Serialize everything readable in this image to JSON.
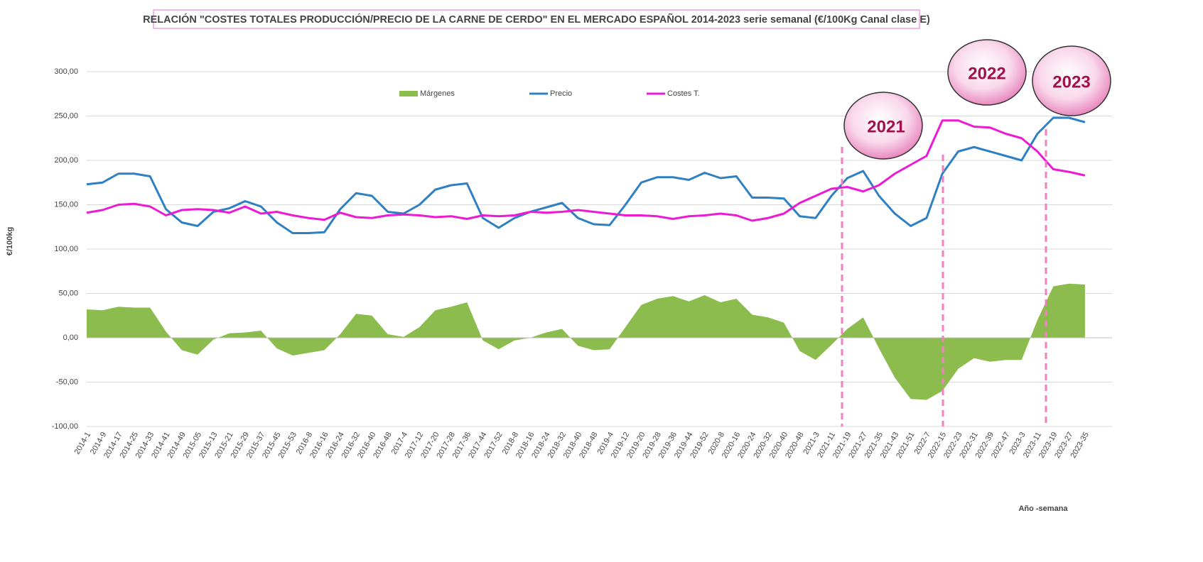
{
  "chart_data": {
    "type": "line",
    "title": "RELACIÓN \"COSTES TOTALES PRODUCCIÓN/PRECIO DE LA CARNE DE CERDO\" EN EL MERCADO ESPAÑOL 2014-2023 serie semanal (€/100Kg Canal clase E)",
    "y_label": "€/100kg",
    "x_label": "Año -semana",
    "annotations": [
      "2021",
      "2022",
      "2023"
    ],
    "categories": [
      "2014-1",
      "2014-9",
      "2014-17",
      "2014-25",
      "2014-33",
      "2014-41",
      "2014-49",
      "2015-05",
      "2015-13",
      "2015-21",
      "2015-29",
      "2015-37",
      "2015-45",
      "2015-53",
      "2016-8",
      "2016-16",
      "2016-24",
      "2016-32",
      "2016-40",
      "2016-48",
      "2017-4",
      "2017-12",
      "2017-20",
      "2017-28",
      "2017-36",
      "2017-44",
      "2017-52",
      "2018-8",
      "2018-16",
      "2018-24",
      "2018-32",
      "2018-40",
      "2018-48",
      "2019-4",
      "2019-12",
      "2019-20",
      "2019-28",
      "2019-36",
      "2019-44",
      "2019-52",
      "2020-8",
      "2020-16",
      "2020-24",
      "2020-32",
      "2020-40",
      "2020-48",
      "2021-3",
      "2021-11",
      "2021-19",
      "2021-27",
      "2021-35",
      "2021-43",
      "2021-51",
      "2022-7",
      "2022-15",
      "2022-23",
      "2022-31",
      "2022-39",
      "2022-47",
      "2023-3",
      "2023-11",
      "2023-19",
      "2023-27",
      "2023-35"
    ],
    "series": [
      {
        "name": "Márgenes",
        "color": "#8cbb4e",
        "kind": "area",
        "values": [
          32,
          31,
          35,
          34,
          34,
          7,
          -14,
          -19,
          -2,
          5,
          6,
          8,
          -12,
          -20,
          -17,
          -14,
          4,
          27,
          25,
          4,
          1,
          12,
          31,
          35,
          40,
          -3,
          -13,
          -3,
          0,
          6,
          10,
          -9,
          -14,
          -13,
          12,
          37,
          44,
          47,
          41,
          48,
          40,
          44,
          26,
          23,
          17,
          -15,
          -25,
          -8,
          10,
          23,
          -12,
          -45,
          -69,
          -70,
          -60,
          -35,
          -23,
          -27,
          -25,
          -25,
          20,
          58,
          61,
          60
        ]
      },
      {
        "name": "Precio",
        "color": "#2f80c2",
        "kind": "line",
        "values": [
          173,
          175,
          185,
          185,
          182,
          145,
          130,
          126,
          142,
          146,
          154,
          148,
          130,
          118,
          118,
          119,
          145,
          163,
          160,
          142,
          140,
          150,
          167,
          172,
          174,
          135,
          124,
          135,
          142,
          147,
          152,
          135,
          128,
          127,
          150,
          175,
          181,
          181,
          178,
          186,
          180,
          182,
          158,
          158,
          157,
          137,
          135,
          160,
          180,
          188,
          160,
          140,
          126,
          135,
          185,
          210,
          215,
          210,
          205,
          200,
          230,
          248,
          248,
          243
        ]
      },
      {
        "name": "Costes T.",
        "color": "#ec1bd3",
        "kind": "line",
        "values": [
          141,
          144,
          150,
          151,
          148,
          138,
          144,
          145,
          144,
          141,
          148,
          140,
          142,
          138,
          135,
          133,
          141,
          136,
          135,
          138,
          139,
          138,
          136,
          137,
          134,
          138,
          137,
          138,
          142,
          141,
          142,
          144,
          142,
          140,
          138,
          138,
          137,
          134,
          137,
          138,
          140,
          138,
          132,
          135,
          140,
          152,
          160,
          168,
          170,
          165,
          172,
          185,
          195,
          205,
          245,
          245,
          238,
          237,
          230,
          225,
          210,
          190,
          187,
          183
        ]
      }
    ],
    "ylim": [
      -100,
      300
    ],
    "yticks": [
      {
        "value": -100,
        "label": "-100,00"
      },
      {
        "value": -50,
        "label": "-50,00"
      },
      {
        "value": 0,
        "label": "0,00"
      },
      {
        "value": 50,
        "label": "50,00"
      },
      {
        "value": 100,
        "label": "100,00"
      },
      {
        "value": 150,
        "label": "150,00"
      },
      {
        "value": 200,
        "label": "200,00"
      },
      {
        "value": 250,
        "label": "250,00"
      },
      {
        "value": 300,
        "label": "300,00"
      }
    ],
    "grid": true,
    "legend": "top"
  }
}
